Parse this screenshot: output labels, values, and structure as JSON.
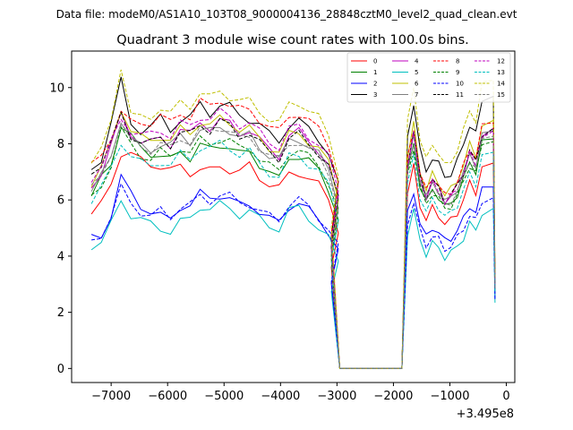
{
  "suptitle": "Data file: modeM0/AS1A10_103T08_9000004136_28848cztM0_level2_quad_clean.evt",
  "chart_data": {
    "type": "line",
    "title": "Quadrant 3 module wise count rates with 100.0s bins.",
    "xlabel": "",
    "ylabel": "",
    "x_offset_label": "+3.495e8",
    "xlim": [
      -7700,
      150
    ],
    "ylim": [
      -0.5,
      11.3
    ],
    "xticks": [
      -7000,
      -6000,
      -5000,
      -4000,
      -3000,
      -2000,
      -1000,
      0
    ],
    "xtick_labels": [
      "−7000",
      "−6000",
      "−5000",
      "−4000",
      "−3000",
      "−2000",
      "−1000",
      "0"
    ],
    "yticks": [
      0,
      2,
      4,
      6,
      8,
      10
    ],
    "ytick_labels": [
      "0",
      "2",
      "4",
      "6",
      "8",
      "10"
    ],
    "grid": false,
    "legend_position": "top-right",
    "legend_columns": 4,
    "series": [
      {
        "name": "0",
        "color": "#ff0000",
        "dash": "solid",
        "profile": [
          5.5,
          5.8,
          6.6,
          7.7,
          7.6,
          7.4,
          7.3,
          7.2,
          7.0,
          7.2,
          7.0,
          7.1,
          7.0,
          7.2,
          7.1,
          7.0,
          7.2,
          6.8,
          6.6,
          6.4,
          6.9,
          7.0,
          6.8,
          6.5,
          6.0,
          5.0
        ]
      },
      {
        "name": "1",
        "color": "#008000",
        "dash": "solid",
        "profile": [
          6.0,
          6.8,
          7.4,
          8.6,
          8.2,
          7.9,
          7.7,
          7.5,
          7.4,
          7.8,
          7.5,
          7.9,
          7.8,
          8.0,
          7.9,
          7.6,
          7.7,
          7.3,
          7.0,
          6.7,
          7.5,
          7.6,
          7.4,
          7.0,
          6.4,
          5.4
        ]
      },
      {
        "name": "2",
        "color": "#0000ff",
        "dash": "solid",
        "profile": [
          4.6,
          4.7,
          5.5,
          6.8,
          6.2,
          5.8,
          5.6,
          5.4,
          5.3,
          5.8,
          5.8,
          6.2,
          6.1,
          6.2,
          6.0,
          5.8,
          5.9,
          5.6,
          5.3,
          5.2,
          5.8,
          5.9,
          5.6,
          5.3,
          4.9,
          4.2
        ]
      },
      {
        "name": "3",
        "color": "#000000",
        "dash": "solid",
        "profile": [
          7.0,
          7.5,
          8.8,
          10.2,
          8.7,
          8.5,
          8.6,
          8.9,
          8.5,
          8.9,
          8.9,
          9.4,
          9.1,
          9.4,
          9.3,
          9.0,
          8.9,
          8.7,
          8.3,
          8.1,
          8.7,
          8.8,
          8.5,
          8.2,
          7.7,
          6.5
        ]
      },
      {
        "name": "4",
        "color": "#bf00bf",
        "dash": "solid",
        "profile": [
          6.5,
          7.0,
          7.9,
          9.0,
          8.4,
          8.1,
          8.0,
          8.2,
          8.0,
          8.5,
          8.3,
          8.8,
          8.6,
          8.8,
          8.7,
          8.4,
          8.5,
          8.1,
          7.8,
          7.6,
          8.3,
          8.4,
          8.1,
          7.8,
          7.2,
          6.0
        ]
      },
      {
        "name": "5",
        "color": "#00bfbf",
        "dash": "solid",
        "profile": [
          4.4,
          4.5,
          5.1,
          6.0,
          5.5,
          5.3,
          5.1,
          5.0,
          4.9,
          5.2,
          5.3,
          5.8,
          5.7,
          5.8,
          5.7,
          5.5,
          5.6,
          5.3,
          5.1,
          5.0,
          5.6,
          5.7,
          5.4,
          5.0,
          4.6,
          3.8
        ]
      },
      {
        "name": "6",
        "color": "#bfbf00",
        "dash": "solid",
        "profile": [
          6.6,
          7.1,
          8.0,
          9.3,
          8.5,
          8.2,
          8.1,
          8.3,
          8.1,
          8.5,
          8.4,
          8.8,
          8.6,
          8.9,
          8.8,
          8.5,
          8.5,
          8.2,
          7.9,
          7.7,
          8.3,
          8.4,
          8.1,
          7.8,
          7.3,
          6.1
        ]
      },
      {
        "name": "7",
        "color": "#808080",
        "dash": "solid",
        "profile": [
          6.3,
          6.8,
          7.6,
          8.9,
          8.1,
          7.9,
          7.8,
          8.0,
          7.9,
          8.3,
          8.1,
          8.5,
          8.4,
          8.6,
          8.5,
          8.2,
          8.3,
          7.9,
          7.6,
          7.4,
          8.1,
          8.2,
          7.9,
          7.6,
          7.1,
          5.9
        ]
      },
      {
        "name": "8",
        "color": "#ff0000",
        "dash": "dashed",
        "profile": [
          7.2,
          7.5,
          8.3,
          9.2,
          8.7,
          8.7,
          8.8,
          9.0,
          8.7,
          9.1,
          9.0,
          9.5,
          9.3,
          9.6,
          9.4,
          9.2,
          9.2,
          8.9,
          8.6,
          8.4,
          9.0,
          9.1,
          8.8,
          8.5,
          8.0,
          6.7
        ]
      },
      {
        "name": "9",
        "color": "#008000",
        "dash": "dashed",
        "profile": [
          6.0,
          6.5,
          7.3,
          8.5,
          7.9,
          7.6,
          7.5,
          7.7,
          7.5,
          7.9,
          7.7,
          8.1,
          8.0,
          8.2,
          8.1,
          7.8,
          7.9,
          7.5,
          7.2,
          7.0,
          7.7,
          7.8,
          7.5,
          7.2,
          6.7,
          5.6
        ]
      },
      {
        "name": "10",
        "color": "#0000ff",
        "dash": "dashed",
        "profile": [
          4.5,
          4.8,
          5.4,
          6.4,
          5.9,
          5.6,
          5.4,
          5.6,
          5.4,
          5.8,
          5.8,
          6.1,
          6.0,
          6.2,
          6.1,
          5.9,
          5.9,
          5.6,
          5.4,
          5.3,
          5.9,
          6.0,
          5.7,
          5.4,
          5.0,
          4.3
        ]
      },
      {
        "name": "11",
        "color": "#000000",
        "dash": "dashed",
        "profile": [
          7.0,
          7.3,
          8.0,
          9.0,
          8.3,
          8.1,
          8.0,
          8.2,
          8.0,
          8.4,
          8.3,
          8.7,
          8.5,
          8.8,
          8.6,
          8.3,
          8.4,
          8.0,
          7.7,
          7.5,
          8.2,
          8.3,
          8.0,
          7.7,
          7.2,
          6.0
        ]
      },
      {
        "name": "12",
        "color": "#bf00bf",
        "dash": "dashed",
        "profile": [
          6.8,
          7.2,
          8.0,
          8.9,
          8.5,
          8.3,
          8.3,
          8.5,
          8.3,
          8.7,
          8.6,
          9.0,
          8.9,
          9.1,
          9.0,
          8.7,
          8.7,
          8.4,
          8.1,
          7.9,
          8.5,
          8.6,
          8.3,
          8.0,
          7.5,
          6.3
        ]
      },
      {
        "name": "13",
        "color": "#00bfbf",
        "dash": "dashed",
        "profile": [
          6.0,
          6.4,
          7.1,
          8.1,
          7.6,
          7.3,
          7.2,
          7.4,
          7.2,
          7.6,
          7.5,
          7.9,
          7.8,
          8.0,
          7.9,
          7.6,
          7.7,
          7.3,
          7.0,
          6.8,
          7.5,
          7.6,
          7.3,
          7.0,
          6.5,
          5.4
        ]
      },
      {
        "name": "14",
        "color": "#bfbf00",
        "dash": "dashed",
        "profile": [
          7.3,
          7.7,
          8.9,
          10.8,
          9.0,
          8.9,
          9.0,
          9.3,
          9.0,
          9.5,
          9.4,
          9.8,
          9.6,
          9.9,
          9.7,
          9.5,
          9.5,
          9.2,
          8.9,
          8.7,
          9.4,
          9.5,
          9.2,
          8.9,
          8.3,
          7.0
        ]
      },
      {
        "name": "15",
        "color": "#808080",
        "dash": "dashed",
        "profile": [
          6.4,
          6.8,
          7.7,
          8.7,
          8.2,
          7.9,
          7.8,
          8.0,
          7.8,
          8.2,
          8.1,
          8.5,
          8.4,
          8.6,
          8.5,
          8.2,
          8.2,
          7.9,
          7.6,
          7.4,
          8.0,
          8.1,
          7.8,
          7.5,
          7.0,
          5.8
        ]
      }
    ],
    "gap_x": [
      -2950,
      -1850
    ],
    "profile_x_start": -7350,
    "profile_x_step": 175
  }
}
